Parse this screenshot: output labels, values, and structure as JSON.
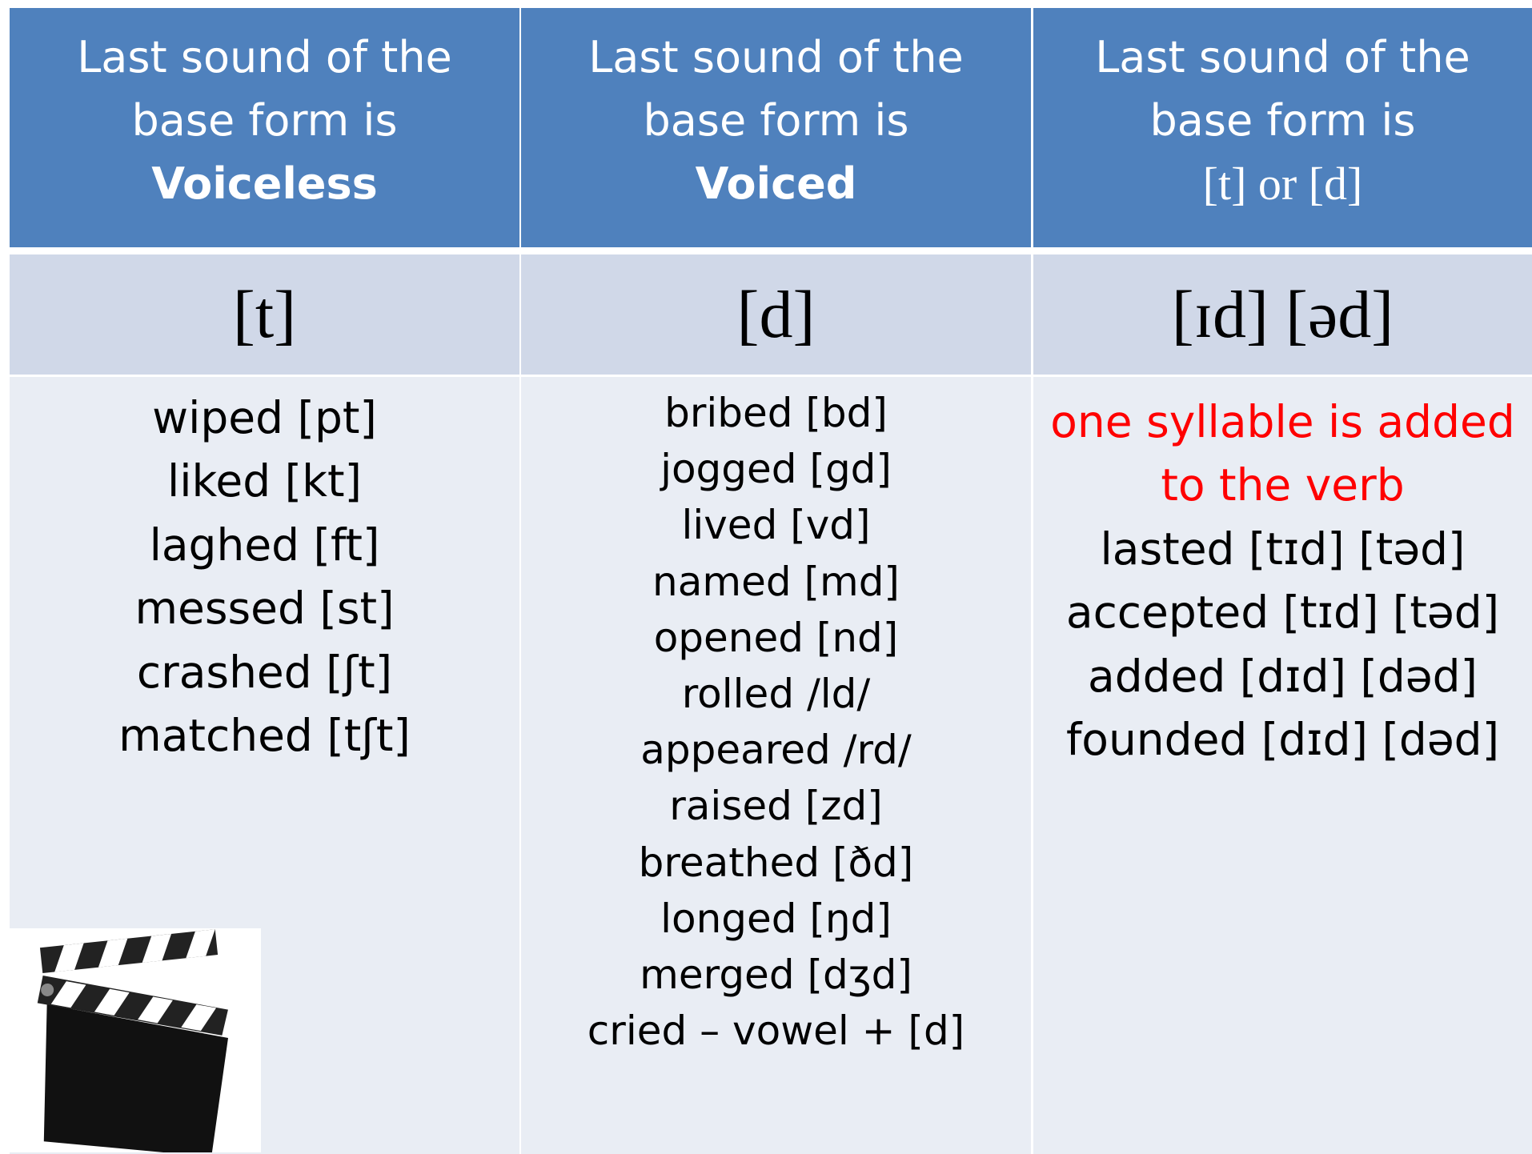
{
  "columns": [
    {
      "header": [
        "Last sound of the",
        "base form is",
        "Voiceless"
      ],
      "sound": "[t]",
      "items": [
        "wiped [pt]",
        "liked [kt]",
        "laghed [ft]",
        "messed [st]",
        "crashed [ʃt]",
        "matched [tʃt]"
      ]
    },
    {
      "header": [
        "Last sound of the",
        "base form is",
        "Voiced"
      ],
      "sound": "[d]",
      "items": [
        "bribed [bd]",
        "jogged [gd]",
        "lived [vd]",
        "named [md]",
        "opened [nd]",
        "rolled /ld/",
        "appeared /rd/",
        "raised [zd]",
        "breathed [ðd]",
        "longed [ŋd]",
        "merged [dʒd]",
        "cried – vowel + [d]"
      ]
    },
    {
      "header": [
        "Last sound of the",
        "base form is",
        "[t] or [d]"
      ],
      "sound": "[ɪd] [əd]",
      "note": [
        "one syllable is added",
        "to the verb"
      ],
      "items": [
        "lasted [tɪd] [təd]",
        "accepted [tɪd] [təd]",
        "added [dɪd] [dəd]",
        "founded [dɪd] [dəd]"
      ]
    }
  ]
}
